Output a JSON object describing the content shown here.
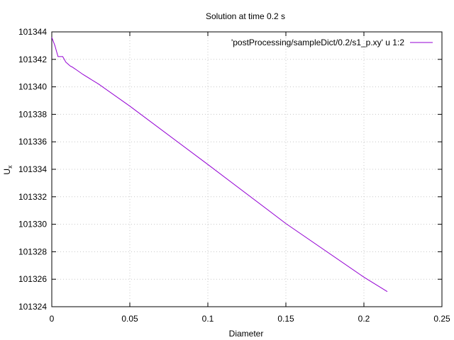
{
  "chart_data": {
    "type": "line",
    "title": "Solution at time 0.2 s",
    "xlabel": "Diameter",
    "ylabel_main": "U",
    "ylabel_sub": "x",
    "xlim": [
      0,
      0.25
    ],
    "ylim": [
      101324,
      101344
    ],
    "x_ticks": [
      0,
      0.05,
      0.1,
      0.15,
      0.2,
      0.25
    ],
    "x_tick_labels": [
      "0",
      "0.05",
      "0.1",
      "0.15",
      "0.2",
      "0.25"
    ],
    "y_ticks": [
      101324,
      101326,
      101328,
      101330,
      101332,
      101334,
      101336,
      101338,
      101340,
      101342,
      101344
    ],
    "y_tick_labels": [
      "101324",
      "101326",
      "101328",
      "101330",
      "101332",
      "101334",
      "101336",
      "101338",
      "101340",
      "101342",
      "101344"
    ],
    "grid": true,
    "legend_position": "top-right",
    "series": [
      {
        "name": "'postProcessing/sampleDict/0.2/s1_p.xy' u 1:2",
        "color": "#9400d3",
        "x": [
          0,
          0.001,
          0.002,
          0.003,
          0.004,
          0.005,
          0.006,
          0.007,
          0.008,
          0.009,
          0.01,
          0.011,
          0.012,
          0.013,
          0.015,
          0.02,
          0.03,
          0.05,
          0.1,
          0.15,
          0.2,
          0.215
        ],
        "y": [
          101343.6,
          101343.3,
          101343.0,
          101342.6,
          101342.2,
          101342.2,
          101342.2,
          101342.2,
          101342.0,
          101341.8,
          101341.7,
          101341.6,
          101341.5,
          101341.45,
          101341.3,
          101340.9,
          101340.2,
          101338.6,
          101334.35,
          101330.05,
          101326.15,
          101325.1
        ]
      }
    ]
  }
}
